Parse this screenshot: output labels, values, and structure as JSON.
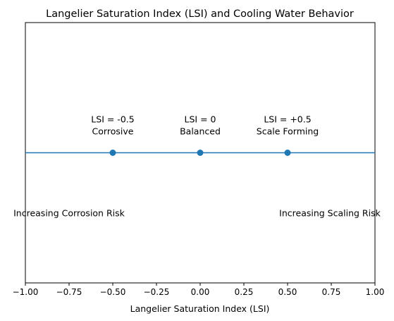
{
  "chart_data": {
    "type": "scatter",
    "title": "Langelier Saturation Index (LSI) and Cooling Water Behavior",
    "xlabel": "Langelier Saturation Index (LSI)",
    "ylabel": "",
    "xlim": [
      -1.0,
      1.0
    ],
    "ylim": [
      -1.5,
      1.5
    ],
    "x_ticks": [
      "−1.00",
      "−0.75",
      "−0.50",
      "−0.25",
      "0.00",
      "0.25",
      "0.50",
      "0.75",
      "1.00"
    ],
    "x_tick_values": [
      -1.0,
      -0.75,
      -0.5,
      -0.25,
      0.0,
      0.25,
      0.5,
      0.75,
      1.0
    ],
    "reference_line": {
      "y": 0,
      "color": "#1f77b4"
    },
    "series": [
      {
        "x": [
          -0.5,
          0.0,
          0.5
        ],
        "y": [
          0,
          0,
          0
        ],
        "color": "#1f77b4"
      }
    ],
    "annotations": [
      {
        "x": -0.5,
        "y": 0.3,
        "lines": [
          "LSI = -0.5",
          "Corrosive"
        ]
      },
      {
        "x": 0.0,
        "y": 0.3,
        "lines": [
          "LSI = 0",
          "Balanced"
        ]
      },
      {
        "x": 0.5,
        "y": 0.3,
        "lines": [
          "LSI = +0.5",
          "Scale Forming"
        ]
      }
    ],
    "side_labels": [
      {
        "x": -1.0,
        "y": -0.7,
        "text": "Increasing Corrosion Risk"
      },
      {
        "x": 1.0,
        "y": -0.7,
        "text": "Increasing Scaling Risk"
      }
    ],
    "grid": false,
    "y_ticks_visible": false
  }
}
